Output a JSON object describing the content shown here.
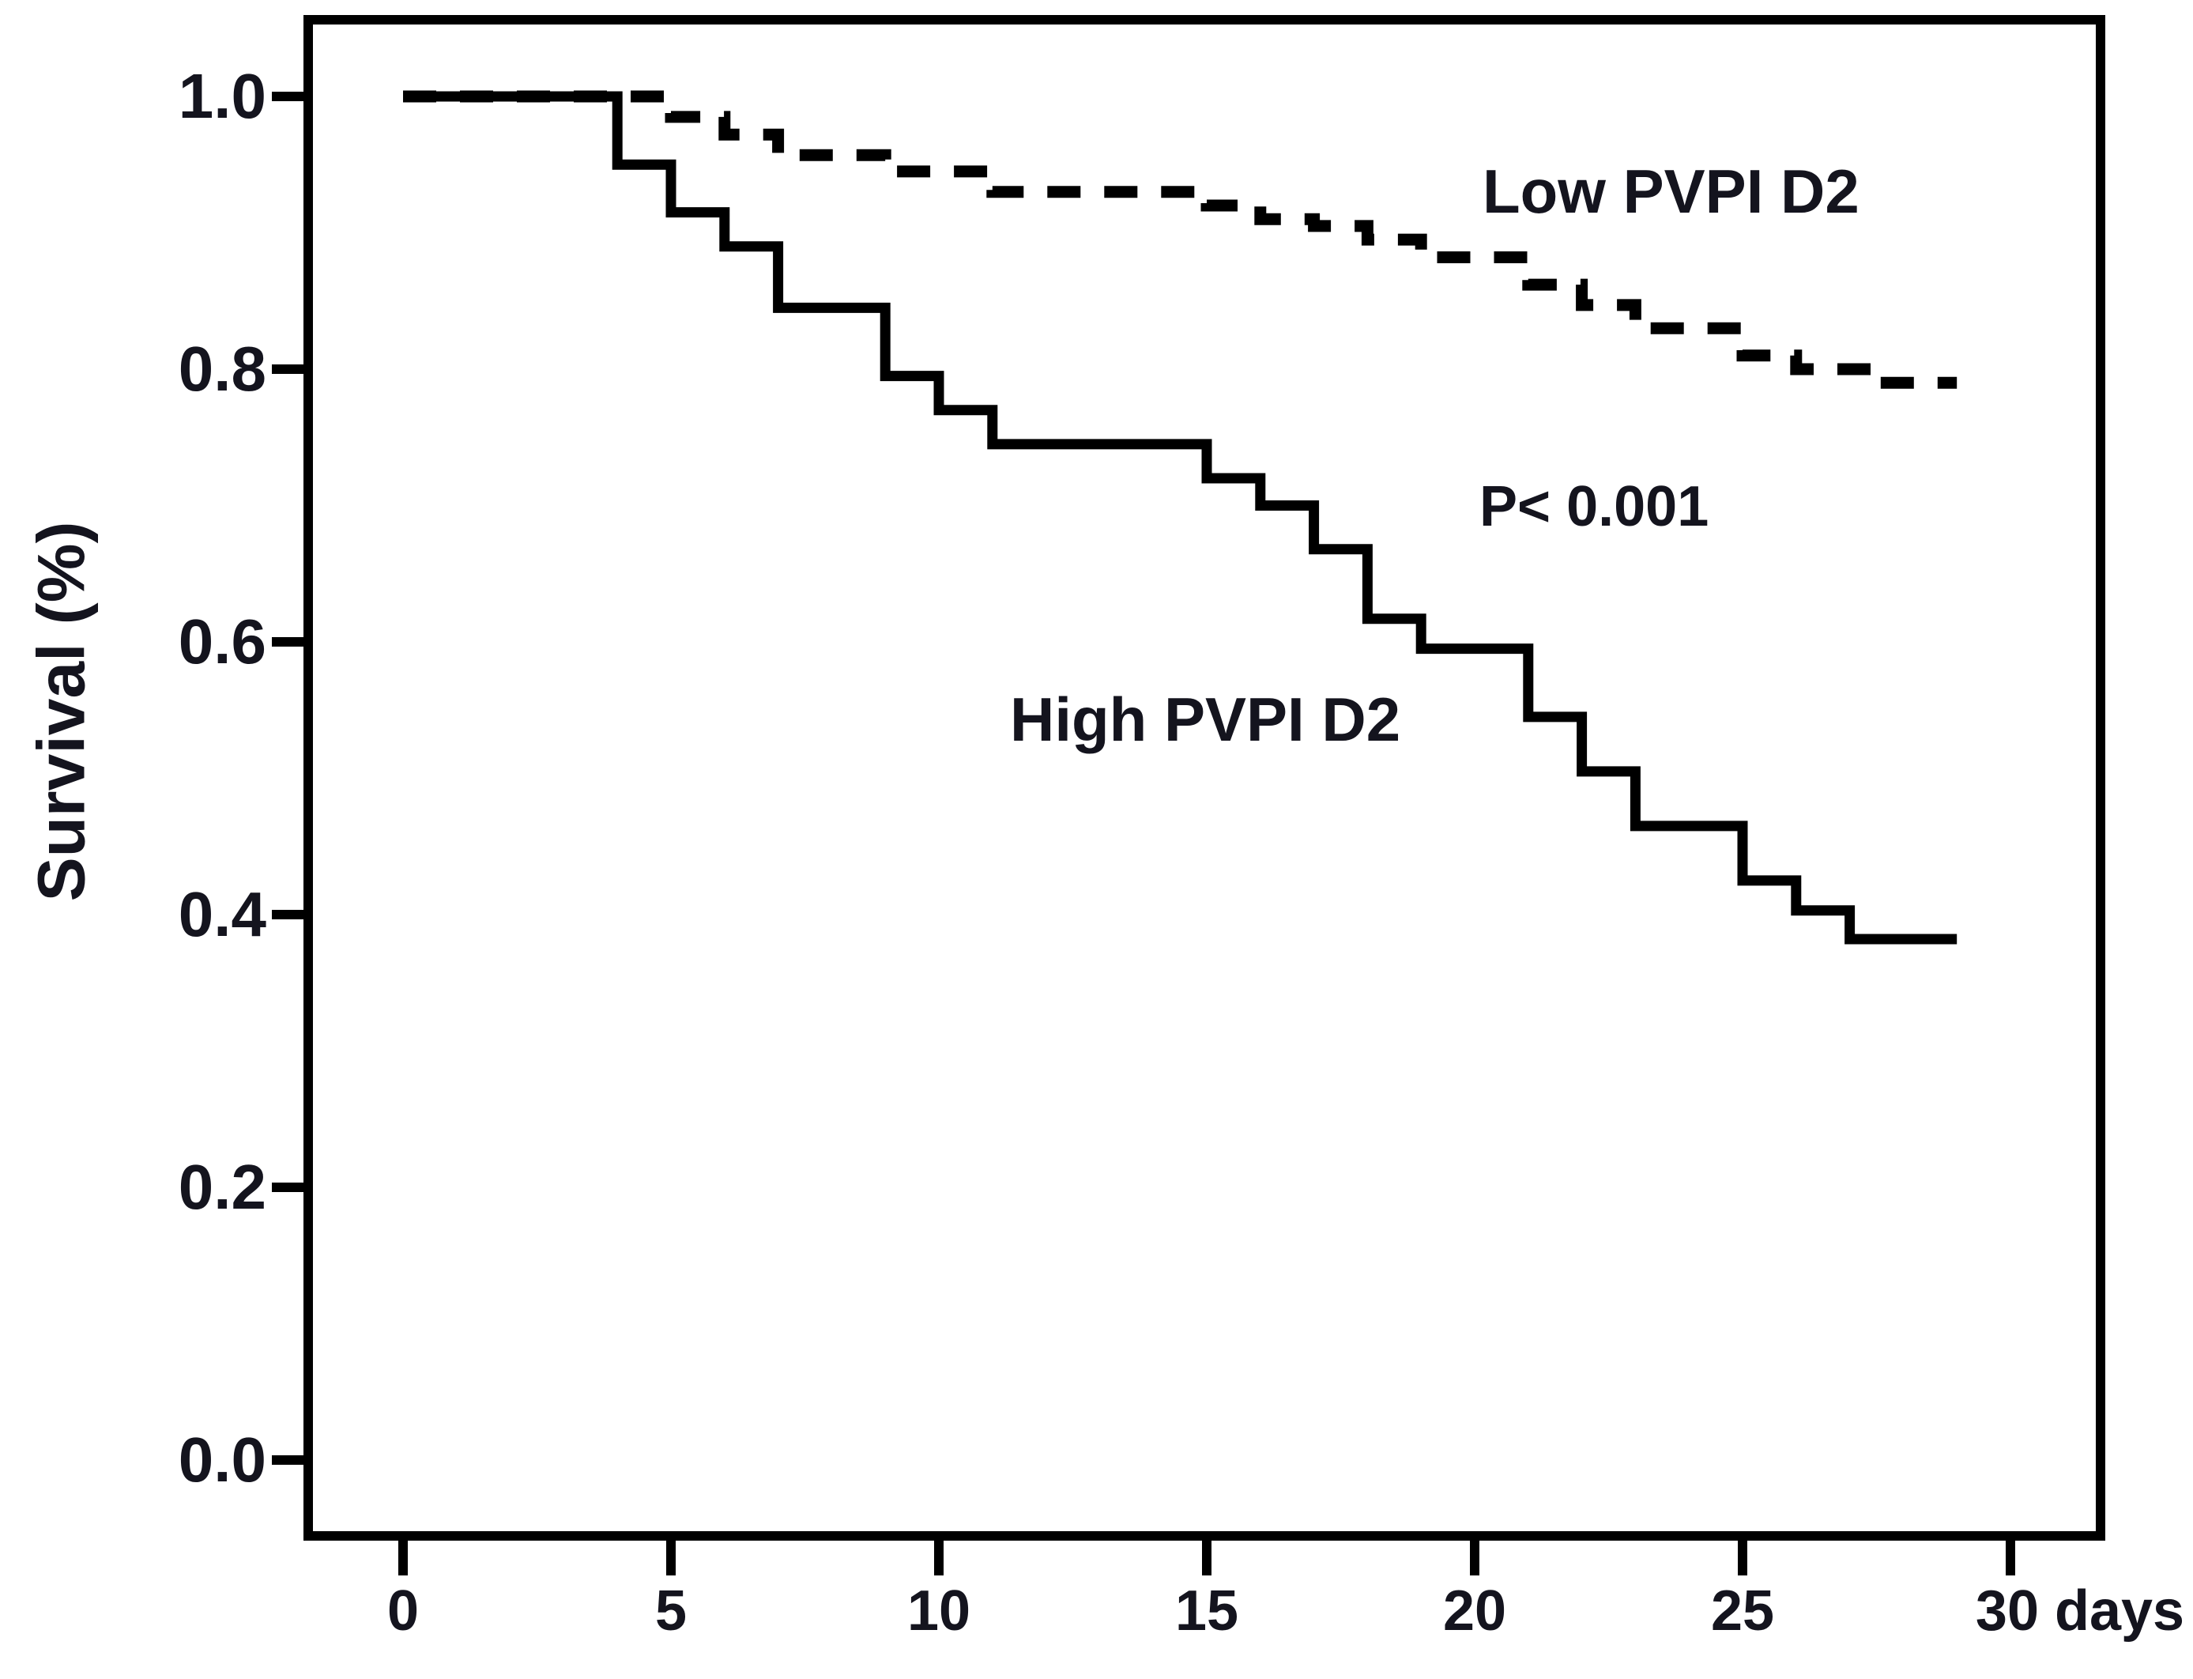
{
  "chart_data": {
    "type": "line",
    "subtype": "kaplan-meier-step-survival-curves",
    "title": "",
    "xlabel": "days",
    "ylabel": "Survival (%)",
    "xlim": [
      0,
      31.7
    ],
    "ylim": [
      -0.06,
      1.06
    ],
    "grid": false,
    "legend_position": "inline-annotations",
    "line_color": "#000000",
    "x_ticks": [
      {
        "day": 0,
        "label": "0"
      },
      {
        "day": 5,
        "label": "5"
      },
      {
        "day": 10,
        "label": "10"
      },
      {
        "day": 15,
        "label": "15"
      },
      {
        "day": 20,
        "label": "20"
      },
      {
        "day": 25,
        "label": "25"
      },
      {
        "day": 30,
        "label": "30 days"
      }
    ],
    "y_ticks": [
      {
        "value": 1.0,
        "label": "1.0"
      },
      {
        "value": 0.8,
        "label": "0.8"
      },
      {
        "value": 0.6,
        "label": "0.6"
      },
      {
        "value": 0.4,
        "label": "0.4"
      },
      {
        "value": 0.2,
        "label": "0.2"
      },
      {
        "value": 0.0,
        "label": "0.0"
      }
    ],
    "annotations": [
      {
        "id": "low-series-label",
        "text": "Low PVPI D2"
      },
      {
        "id": "p-value-label",
        "text": "P< 0.001"
      },
      {
        "id": "high-series-label",
        "text": "High PVPI D2"
      }
    ],
    "series": [
      {
        "name": "Low PVPI D2",
        "line_style": "dashed",
        "color": "#000000",
        "points_day_survival": [
          [
            0,
            1.0
          ],
          [
            5,
            0.985
          ],
          [
            6,
            0.972
          ],
          [
            7,
            0.957
          ],
          [
            9,
            0.945
          ],
          [
            11,
            0.93
          ],
          [
            15,
            0.92
          ],
          [
            16,
            0.91
          ],
          [
            17,
            0.905
          ],
          [
            18,
            0.895
          ],
          [
            19,
            0.882
          ],
          [
            21,
            0.862
          ],
          [
            22,
            0.847
          ],
          [
            23,
            0.83
          ],
          [
            25,
            0.81
          ],
          [
            26,
            0.8
          ],
          [
            27.5,
            0.79
          ],
          [
            29,
            0.79
          ]
        ]
      },
      {
        "name": "High PVPI D2",
        "line_style": "solid",
        "color": "#000000",
        "points_day_survival": [
          [
            0,
            1.0
          ],
          [
            4,
            0.95
          ],
          [
            5,
            0.915
          ],
          [
            6,
            0.89
          ],
          [
            7,
            0.845
          ],
          [
            9,
            0.795
          ],
          [
            10,
            0.77
          ],
          [
            11,
            0.745
          ],
          [
            15,
            0.72
          ],
          [
            16,
            0.7
          ],
          [
            17,
            0.668
          ],
          [
            18,
            0.617
          ],
          [
            19,
            0.595
          ],
          [
            21,
            0.545
          ],
          [
            22,
            0.505
          ],
          [
            23,
            0.465
          ],
          [
            25,
            0.425
          ],
          [
            26,
            0.403
          ],
          [
            27,
            0.382
          ],
          [
            29,
            0.382
          ]
        ]
      }
    ]
  }
}
